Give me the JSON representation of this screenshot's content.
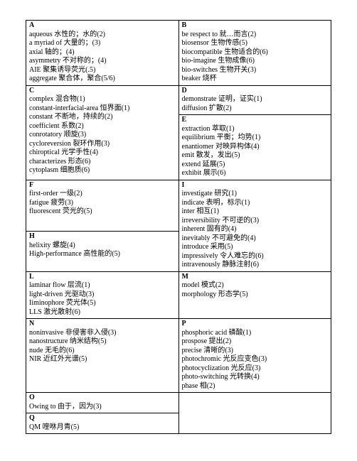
{
  "cells": {
    "A": [
      "aqueous 水性的；水的(2)",
      "a myriad of 大量的；(3)",
      "axial 轴的；(4)",
      "asymmetry 不对称的；(4)",
      "AIE 聚集诱导荧光(.5)",
      "aggregate 聚合体，聚合(5/6)"
    ],
    "B": [
      "be respect to 就…而言(2)",
      "biosensor 生物传感(5)",
      "biocompatible 生物适合的(6)",
      "bio-imagine 生物成像(6)",
      "bio-switches 生物开关(3)",
      "beaker 烧杯"
    ],
    "C": [
      "complex 混合物(1)",
      "constant-interfacial-area   恒界面(1)",
      "constant 不断地，持续的(2)",
      "coefficient 系数(2)",
      "conrotatory 顺旋(3)",
      "cycloreversion 裂环作用(3)",
      "chiroptical 光学手性(4)",
      "characterizes 形态(6)",
      "cytoplasm 细胞质(6)"
    ],
    "D": [
      "demonstrate 证明，证实(1)",
      "diffusion 扩散(2)"
    ],
    "E": [
      "extraction 萃取(1)",
      "equilibrium 平衡；均势(1)",
      "enantiomer 对映异构体(4)",
      "emit 散发，发出(5)",
      "extend 延展(5)",
      "exhibit 展示(6)"
    ],
    "F": [
      "first-order 一级(2)",
      "fatigue 疲劳(3)",
      "fluorescent 荧光的(5)"
    ],
    "I": [
      "investigate 研究(1)",
      "indicate 表明，标示(1)",
      "inter 相互(1)",
      "irreversibility 不可逆的(3)",
      "inherent 固有的(4)",
      "inevitably 不可避免的(4)",
      "introduce 采用(5)",
      "impressively 令人难忘的(6)",
      "intravenously 静脉注射(6)"
    ],
    "H": [
      "helixity 螺旋(4)",
      "High-performance 高性能的(5)"
    ],
    "L": [
      "laminar flow 层流(1)",
      "light-driven 光驱动(3)",
      "Iiminophore 荧光体(5)",
      "LLS 激光散射(6)"
    ],
    "M": [
      "model 模式(2)",
      "morphology 形态学(5)"
    ],
    "N": [
      "noninvasive 非侵害非入侵(3)",
      "nanostructure 纳米结构(5)",
      "nude 无毛的(6)",
      "NIR 近红外光谱(5)"
    ],
    "P": [
      "phosphoric acid 磷酸(1)",
      "prospose 提出(2)",
      "precise 清晰的(3)",
      "photochromic 光反应变色(3)",
      "photocyclization 光反应(3)",
      "photo-switching 光转换(4)",
      "phase 相(2)"
    ],
    "O": [
      "Owing to 由于，因为(3)"
    ],
    "Q": [
      "QM 喹咻月青(5)"
    ]
  }
}
